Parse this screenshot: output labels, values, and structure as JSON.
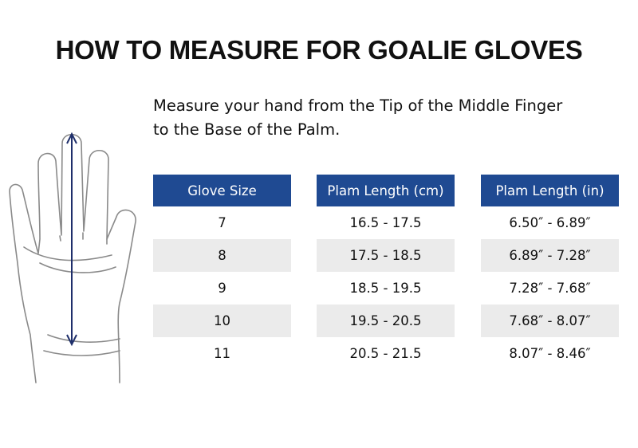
{
  "header": {
    "title": "HOW TO MEASURE FOR GOALIE GLOVES"
  },
  "instructions": [
    "Measure your hand from the Tip of the Middle Finger",
    "to the Base of the Palm."
  ],
  "table": {
    "headers": [
      "Glove Size",
      "Plam Length (cm)",
      "Plam Length (in)"
    ],
    "rows": [
      [
        "7",
        "16.5 - 17.5",
        "6.50″ - 6.89″"
      ],
      [
        "8",
        "17.5 - 18.5",
        "6.89″ - 7.28″"
      ],
      [
        "9",
        "18.5 - 19.5",
        "7.28″ - 7.68″"
      ],
      [
        "10",
        "19.5 - 20.5",
        "7.68″ - 8.07″"
      ],
      [
        "11",
        "20.5 - 21.5",
        "8.07″ - 8.46″"
      ]
    ]
  }
}
